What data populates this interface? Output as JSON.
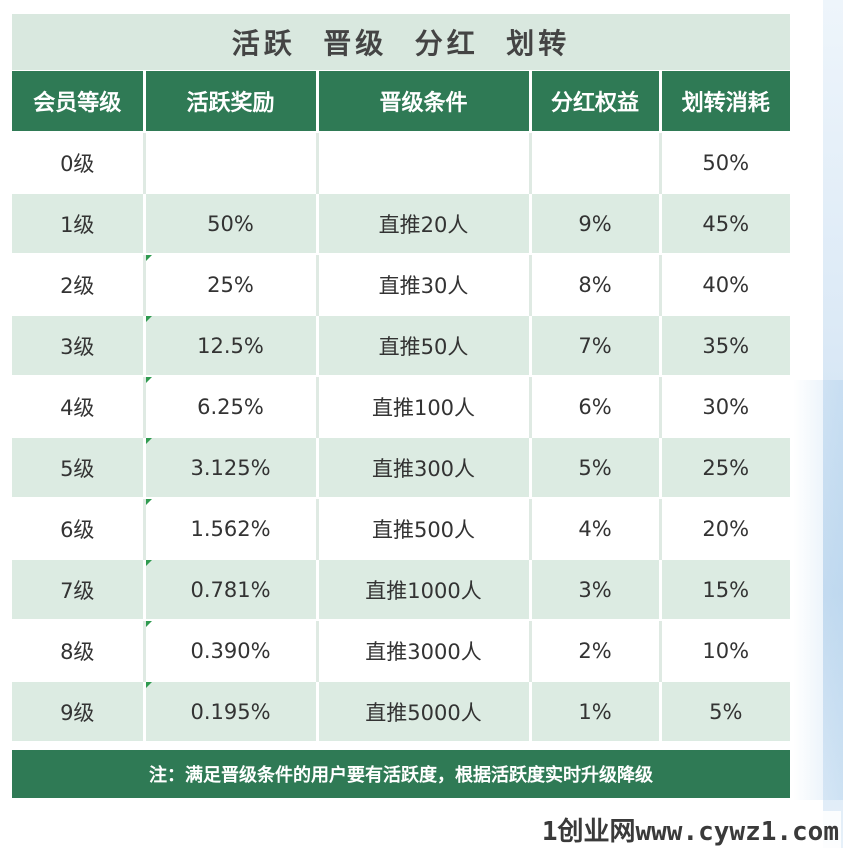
{
  "title": "活跃  晋级  分红  划转",
  "headers": [
    "会员等级",
    "活跃奖励",
    "晋级条件",
    "分红权益",
    "划转消耗"
  ],
  "rows": [
    [
      "0级",
      "",
      "",
      "",
      "50%"
    ],
    [
      "1级",
      "50%",
      "直推20人",
      "9%",
      "45%"
    ],
    [
      "2级",
      "25%",
      "直推30人",
      "8%",
      "40%"
    ],
    [
      "3级",
      "12.5%",
      "直推50人",
      "7%",
      "35%"
    ],
    [
      "4级",
      "6.25%",
      "直推100人",
      "6%",
      "30%"
    ],
    [
      "5级",
      "3.125%",
      "直推300人",
      "5%",
      "25%"
    ],
    [
      "6级",
      "1.562%",
      "直推500人",
      "4%",
      "20%"
    ],
    [
      "7级",
      "0.781%",
      "直推1000人",
      "3%",
      "15%"
    ],
    [
      "8级",
      "0.390%",
      "直推3000人",
      "2%",
      "10%"
    ],
    [
      "9级",
      "0.195%",
      "直推5000人",
      "1%",
      "5%"
    ]
  ],
  "note": "注：满足晋级条件的用户要有活跃度，根据活跃度实时升级降级",
  "watermark": "1创业网www.cywz1.com",
  "colors": {
    "header_green": "#2f7a55",
    "title_band": "#d9e8df",
    "stripe_row": "#dcebe2"
  }
}
